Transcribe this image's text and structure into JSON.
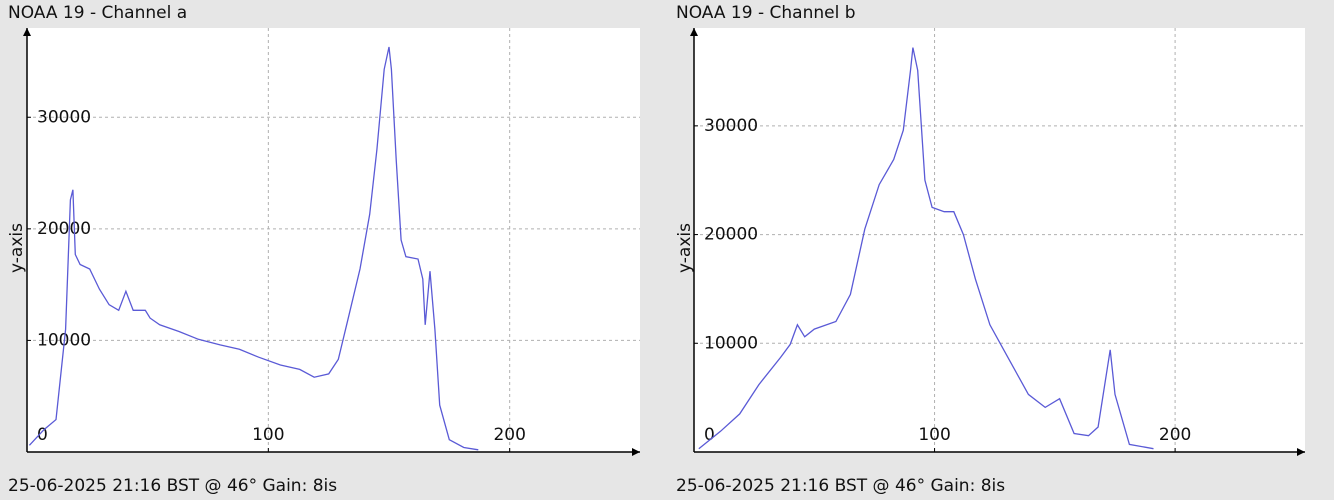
{
  "chart_data": [
    {
      "type": "line",
      "title": "NOAA 19 - Channel a",
      "ylabel": "y-axis",
      "footer": "25-06-2025 21:16 BST @ 46° Gain: 8is",
      "color": "#5a5ad6",
      "grid": true,
      "xlim": [
        0,
        254
      ],
      "ylim": [
        0,
        38000
      ],
      "xticks": [
        100,
        200
      ],
      "yticks": [
        0,
        10000,
        20000,
        30000
      ],
      "x": [
        1,
        7,
        12,
        16,
        18,
        19,
        20,
        22,
        26,
        30,
        34,
        38,
        41,
        44,
        49,
        51,
        55,
        63,
        71,
        80,
        88,
        96,
        105,
        113,
        119,
        125,
        129,
        133,
        138,
        142,
        145,
        148,
        150,
        151,
        153,
        155,
        157,
        162,
        164,
        165,
        167,
        169,
        171,
        175,
        181,
        187
      ],
      "values": [
        600,
        2000,
        2900,
        11000,
        22600,
        23500,
        17700,
        16800,
        16400,
        14600,
        13200,
        12700,
        14400,
        12700,
        12700,
        12000,
        11400,
        10800,
        10100,
        9600,
        9200,
        8500,
        7800,
        7400,
        6700,
        7000,
        8300,
        11900,
        16400,
        21300,
        27100,
        34300,
        36300,
        34300,
        26200,
        19000,
        17500,
        17300,
        15500,
        11400,
        16200,
        11000,
        4200,
        1100,
        400,
        200
      ]
    },
    {
      "type": "line",
      "title": "NOAA 19 - Channel b",
      "ylabel": "y-axis",
      "footer": "25-06-2025 21:16 BST @ 46° Gain: 8is",
      "color": "#5a5ad6",
      "grid": true,
      "xlim": [
        0,
        254
      ],
      "ylim": [
        0,
        39000
      ],
      "xticks": [
        100,
        200
      ],
      "yticks": [
        0,
        10000,
        20000,
        30000
      ],
      "x": [
        2,
        11,
        19,
        27,
        36,
        40,
        43,
        46,
        50,
        59,
        65,
        71,
        77,
        83,
        87,
        90,
        91,
        93,
        96,
        99,
        104,
        108,
        112,
        117,
        123,
        131,
        139,
        146,
        152,
        158,
        164,
        168,
        173,
        175,
        181,
        191
      ],
      "values": [
        300,
        1900,
        3500,
        6200,
        8700,
        9900,
        11700,
        10600,
        11300,
        12000,
        14500,
        20500,
        24600,
        26900,
        29600,
        35100,
        37200,
        35100,
        25000,
        22500,
        22100,
        22100,
        20000,
        15900,
        11700,
        8500,
        5300,
        4100,
        4900,
        1700,
        1500,
        2300,
        9400,
        5300,
        700,
        300
      ]
    }
  ]
}
